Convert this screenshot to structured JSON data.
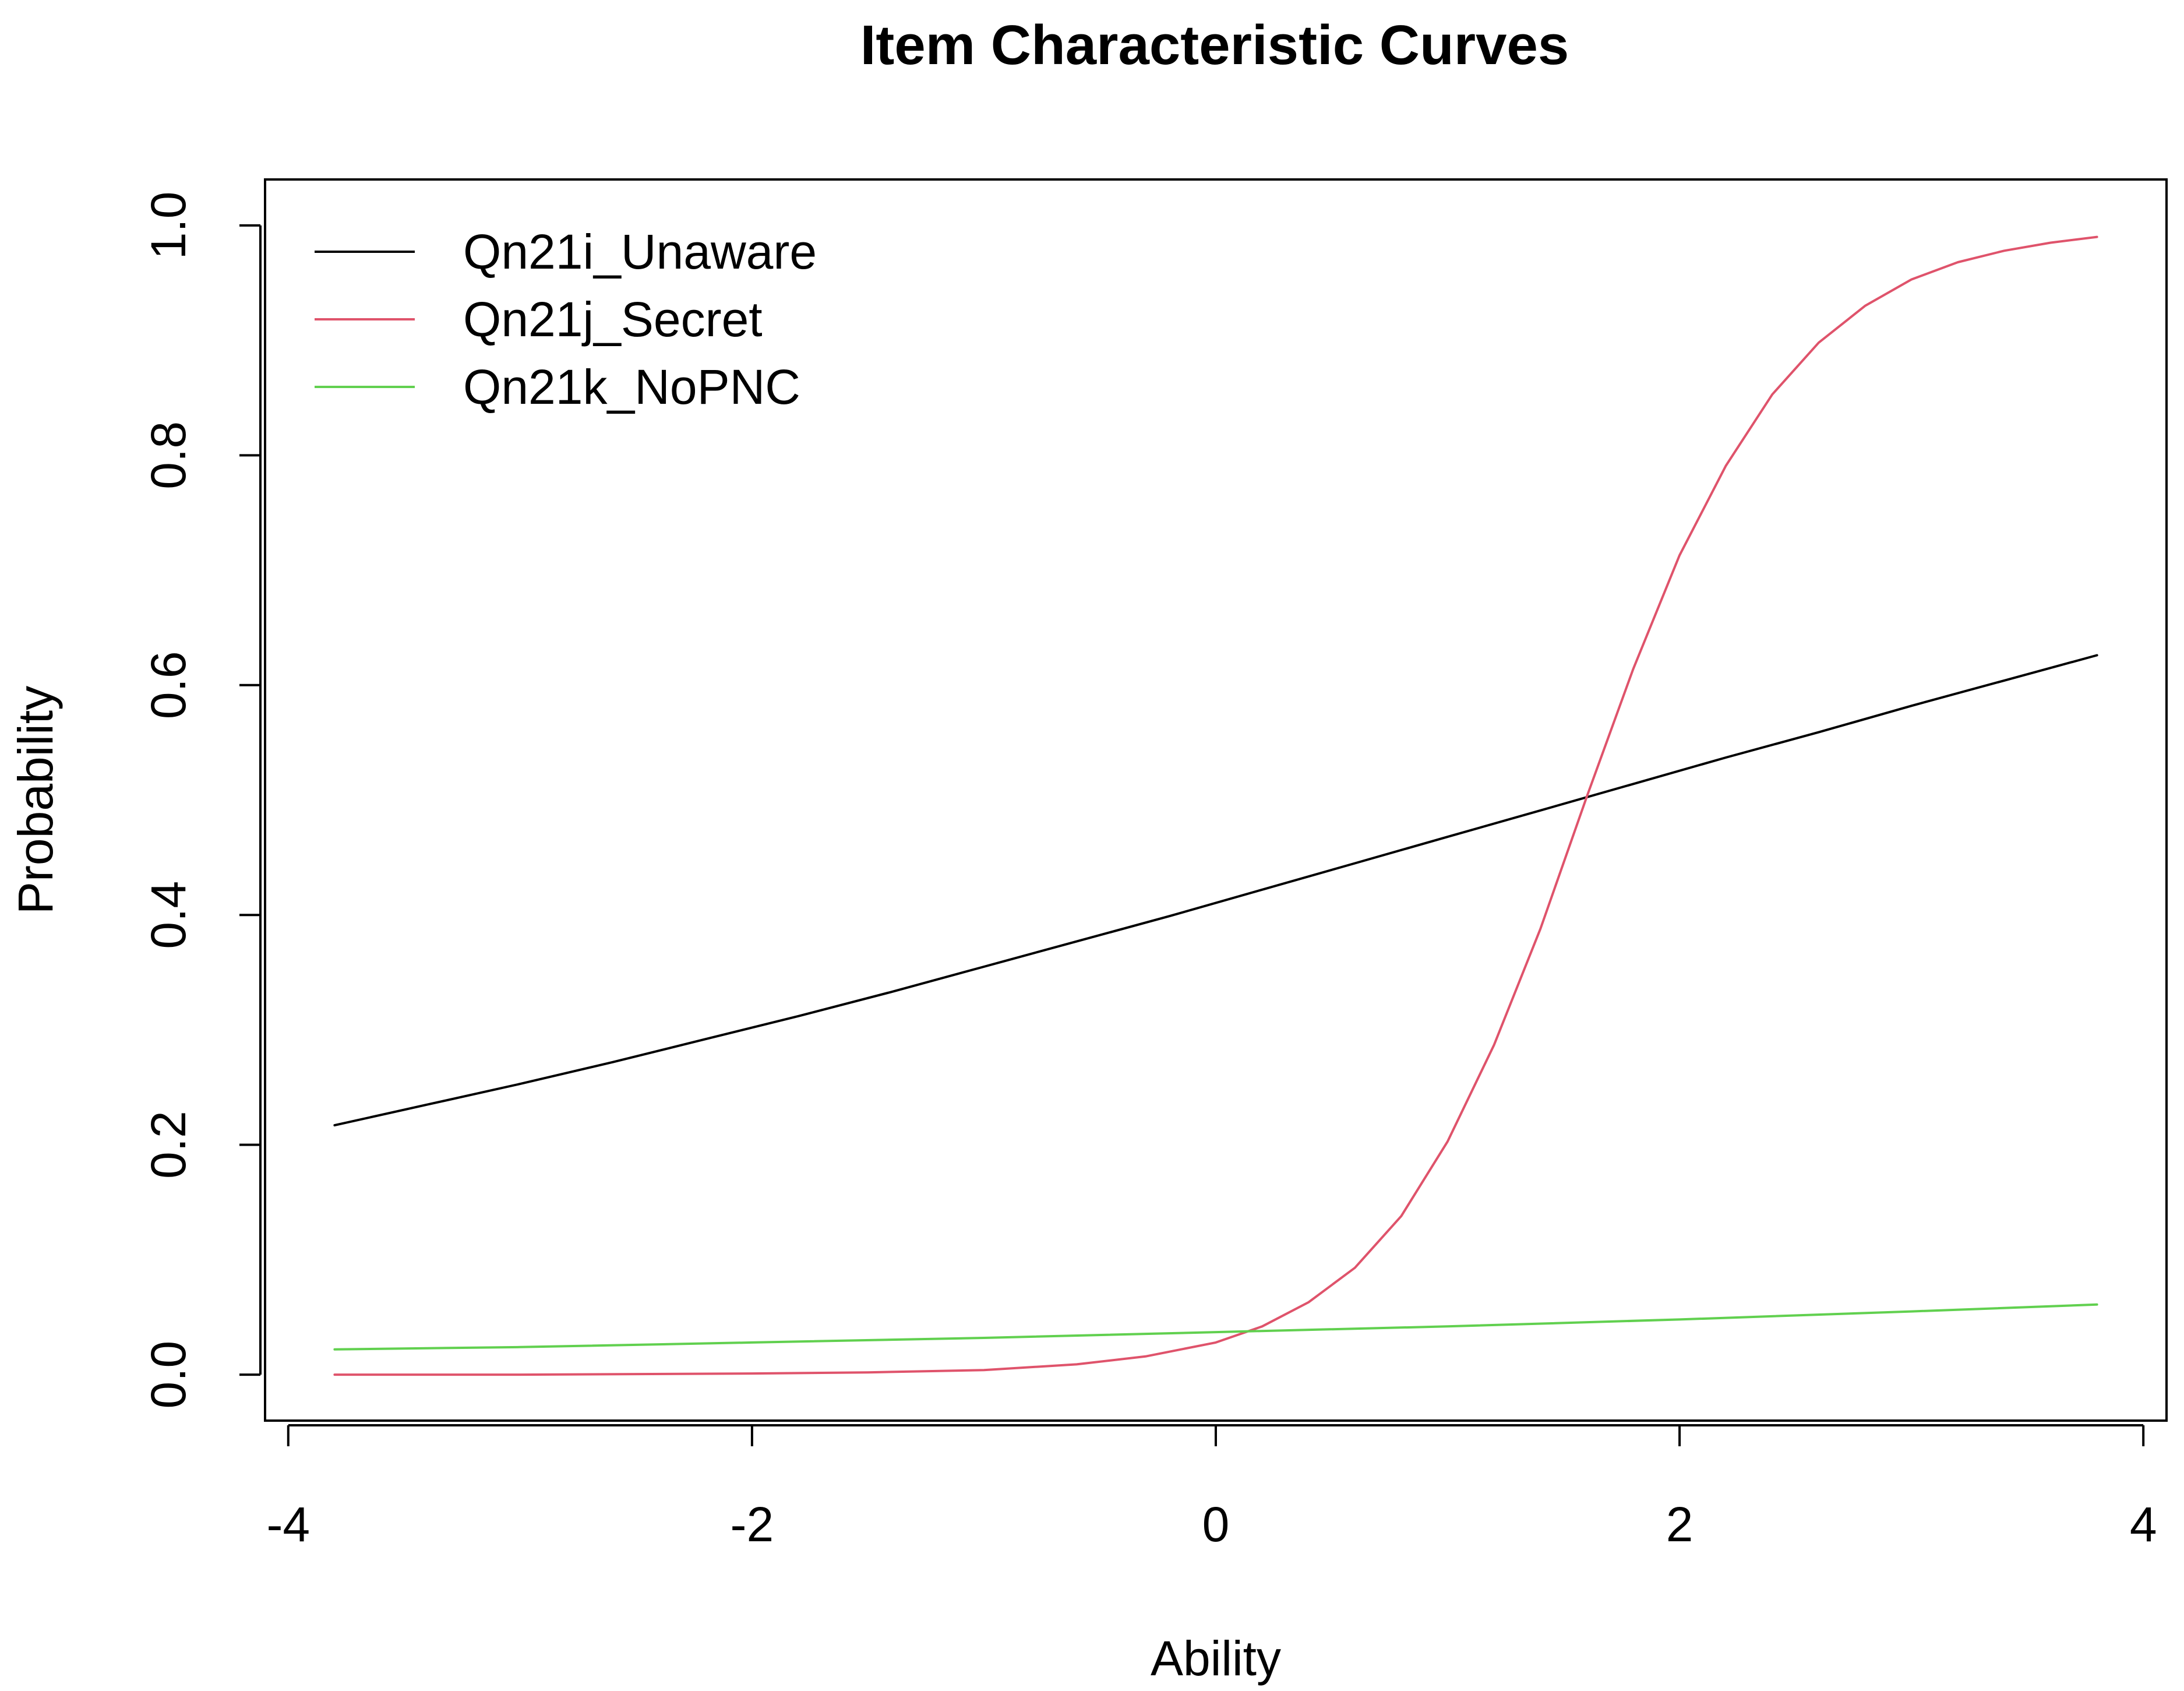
{
  "chart_data": {
    "type": "line",
    "title": "Item Characteristic Curves",
    "xlabel": "Ability",
    "ylabel": "Probability",
    "xlim": [
      -4.1,
      4.1
    ],
    "ylim": [
      -0.04,
      1.04
    ],
    "xticks": [
      -4,
      -2,
      0,
      2,
      4
    ],
    "xtick_labels": [
      "-4",
      "-2",
      "0",
      "2",
      "4"
    ],
    "yticks": [
      0.0,
      0.2,
      0.4,
      0.6,
      0.8,
      1.0
    ],
    "ytick_labels": [
      "0.0",
      "0.2",
      "0.4",
      "0.6",
      "0.8",
      "1.0"
    ],
    "grid": false,
    "legend_position": "top-left",
    "series": [
      {
        "name": "Qn21i_Unaware",
        "color": "#000000",
        "x": [
          -3.8,
          -3.4,
          -3.0,
          -2.6,
          -2.2,
          -1.8,
          -1.4,
          -1.0,
          -0.6,
          -0.2,
          0.2,
          0.6,
          1.0,
          1.4,
          1.8,
          2.2,
          2.6,
          3.0,
          3.4,
          3.8
        ],
        "y": [
          0.217,
          0.235,
          0.253,
          0.272,
          0.292,
          0.312,
          0.333,
          0.355,
          0.377,
          0.399,
          0.422,
          0.445,
          0.468,
          0.491,
          0.514,
          0.537,
          0.559,
          0.582,
          0.604,
          0.626
        ]
      },
      {
        "name": "Qn21j_Secret",
        "color": "#df536b",
        "x": [
          -3.8,
          -3.0,
          -2.0,
          -1.5,
          -1.0,
          -0.6,
          -0.3,
          0.0,
          0.2,
          0.4,
          0.6,
          0.8,
          1.0,
          1.2,
          1.4,
          1.6,
          1.8,
          2.0,
          2.2,
          2.4,
          2.6,
          2.8,
          3.0,
          3.2,
          3.4,
          3.6,
          3.8
        ],
        "y": [
          0.0,
          0.0,
          0.001,
          0.002,
          0.004,
          0.009,
          0.016,
          0.028,
          0.042,
          0.063,
          0.093,
          0.138,
          0.203,
          0.287,
          0.388,
          0.503,
          0.614,
          0.713,
          0.791,
          0.853,
          0.898,
          0.93,
          0.953,
          0.968,
          0.978,
          0.985,
          0.99
        ]
      },
      {
        "name": "Qn21k_NoPNC",
        "color": "#61d04f",
        "x": [
          -3.8,
          -3.0,
          -2.0,
          -1.0,
          0.0,
          1.0,
          2.0,
          3.0,
          3.8
        ],
        "y": [
          0.022,
          0.024,
          0.028,
          0.032,
          0.037,
          0.042,
          0.048,
          0.055,
          0.061
        ]
      }
    ]
  }
}
